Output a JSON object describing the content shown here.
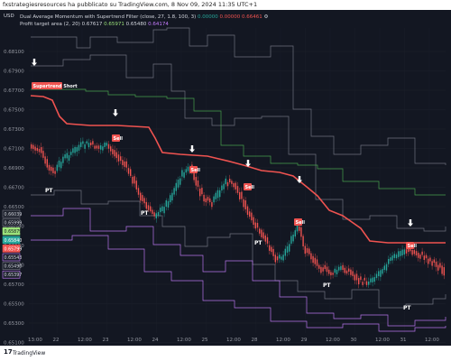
{
  "attribution": "fxstrategiesresources ha pubblicato su TradingView.com, 8 Nov 09, 2024 11:35 UTC+1",
  "symbol_label": "USD",
  "indicator_1": {
    "label": "Dual Average Momentum with Supertrend Filter (close, 27, 1.8, 100, 3)",
    "values": [
      "0.00000",
      "0.00000",
      "0.66461"
    ],
    "colors": [
      "#26a69a",
      "#ef5350",
      "#ef5350"
    ]
  },
  "indicator_2": {
    "label": "Profit target area (2, 20)",
    "values": [
      "0.67617",
      "0.65971",
      "0.65480",
      "0.64174"
    ],
    "colors": [
      "#d1d4dc",
      "#9be27a",
      "#d1d4dc",
      "#c77dff"
    ]
  },
  "signals": {
    "start": "Supertrend Short",
    "sell": "Sell",
    "pt": "PT"
  },
  "price_axis": [
    "0.68100",
    "0.67900",
    "0.67700",
    "0.67500",
    "0.67300",
    "0.67100",
    "0.66900",
    "0.66700",
    "0.66500",
    "0.66300",
    "0.66100",
    "0.65900",
    "0.65700",
    "0.65500",
    "0.65300",
    "0.65100"
  ],
  "price_tags": [
    {
      "text": "0.66039",
      "bg": "#1e222d",
      "fg": "#d1d4dc",
      "border": "#787b86"
    },
    {
      "text": "0.65999",
      "bg": "#1e222d",
      "fg": "#d1d4dc",
      "border": "#787b86"
    },
    {
      "text": "0.65879",
      "bg": "#9be27a",
      "fg": "#131722",
      "border": "#9be27a"
    },
    {
      "text": "0.65840",
      "bg": "#26a69a",
      "fg": "#ffffff",
      "border": "#26a69a"
    },
    {
      "text": "0.65799",
      "bg": "#ef5350",
      "fg": "#ffffff",
      "border": "#ef5350"
    },
    {
      "text": "0.65543",
      "bg": "#1e222d",
      "fg": "#d1d4dc",
      "border": "#c77dff"
    },
    {
      "text": "0.65490",
      "bg": "#1e222d",
      "fg": "#d1d4dc",
      "border": "#787b86"
    },
    {
      "text": "0.65397",
      "bg": "#1e222d",
      "fg": "#d1d4dc",
      "border": "#c77dff"
    }
  ],
  "time_axis": [
    "13:00",
    "22",
    "12:00",
    "23",
    "12:00",
    "24",
    "12:00",
    "25",
    "12:00",
    "28",
    "12:00",
    "29",
    "12:00",
    "30",
    "12:00",
    "31",
    "12:00"
  ],
  "footer": {
    "logo": "17",
    "brand": "TradingView"
  },
  "colors": {
    "background": "#131722",
    "up": "#26a69a",
    "down": "#ef5350",
    "supertrend": "#ef5350",
    "bands": "#787b86",
    "upper_band": "#4caf50",
    "lower_band": "#c77dff"
  }
}
